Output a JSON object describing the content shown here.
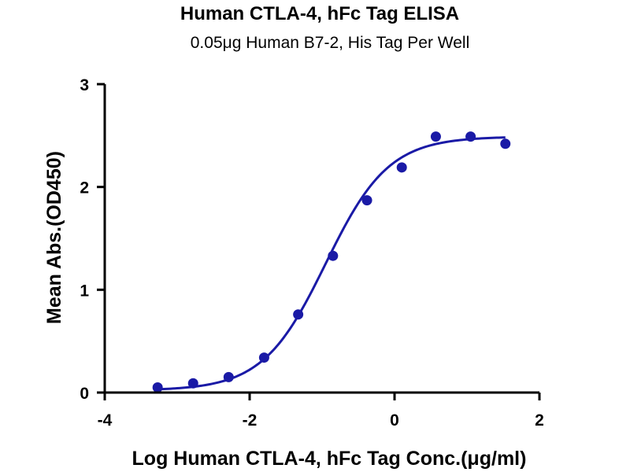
{
  "chart_data": {
    "type": "scatter",
    "title": "Human CTLA-4, hFc Tag ELISA",
    "subtitle": "0.05μg Human B7-2, His Tag Per Well",
    "xlabel": "Log Human CTLA-4, hFc Tag Conc.(μg/ml)",
    "ylabel": "Mean Abs.(OD450)",
    "xlim": [
      -4,
      2
    ],
    "ylim": [
      0,
      3
    ],
    "xticks": [
      "-4",
      "-2",
      "0",
      "2"
    ],
    "xtick_values": [
      -4,
      -2,
      0,
      2
    ],
    "yticks": [
      "0",
      "1",
      "2",
      "3"
    ],
    "ytick_values": [
      0,
      1,
      2,
      3
    ],
    "grid": false,
    "color": "#1a1aa6",
    "points": {
      "x": [
        -3.27,
        -2.78,
        -2.29,
        -1.8,
        -1.33,
        -0.85,
        -0.38,
        0.1,
        0.57,
        1.05,
        1.53
      ],
      "y": [
        0.05,
        0.09,
        0.15,
        0.34,
        0.76,
        1.33,
        1.87,
        2.19,
        2.49,
        2.49,
        2.42
      ]
    },
    "fit_curve": {
      "model": "4PL",
      "bottom": 0.02,
      "top": 2.49,
      "log_ec50": -0.95,
      "hill_slope": 1.0,
      "x_range": [
        -3.27,
        1.53
      ]
    }
  }
}
